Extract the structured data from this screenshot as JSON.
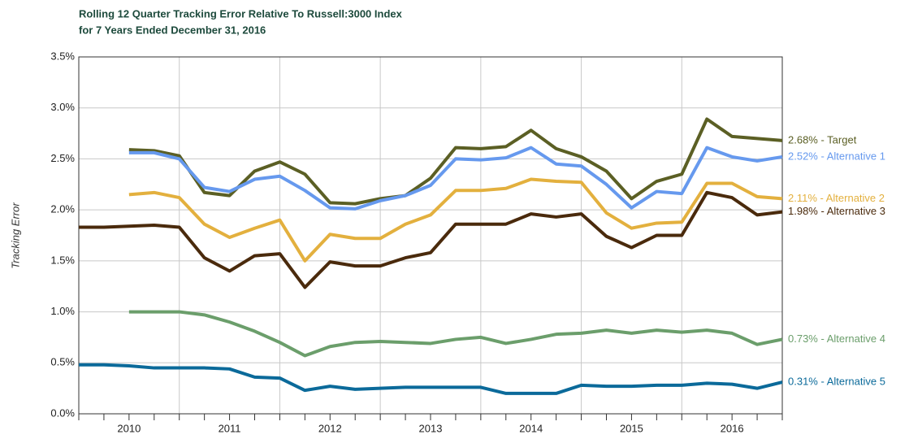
{
  "chart_data": {
    "type": "line",
    "title": "Rolling 12 Quarter Tracking Error Relative To Russell:3000 Index",
    "subtitle": "for 7 Years Ended December 31, 2016",
    "y_label": "Tracking Error",
    "x": [
      2010,
      2010.25,
      2010.5,
      2010.75,
      2011,
      2011.25,
      2011.5,
      2011.75,
      2012,
      2012.25,
      2012.5,
      2012.75,
      2013,
      2013.25,
      2013.5,
      2013.75,
      2014,
      2014.25,
      2014.5,
      2014.75,
      2015,
      2015.25,
      2015.5,
      2015.75,
      2016,
      2016.25,
      2016.5,
      2016.75,
      2017
    ],
    "xlim": [
      2010,
      2017
    ],
    "xticks": [
      {
        "value": 2010.5,
        "label": "2010"
      },
      {
        "value": 2011.5,
        "label": "2011"
      },
      {
        "value": 2012.5,
        "label": "2012"
      },
      {
        "value": 2013.5,
        "label": "2013"
      },
      {
        "value": 2014.5,
        "label": "2014"
      },
      {
        "value": 2015.5,
        "label": "2015"
      },
      {
        "value": 2016.5,
        "label": "2016"
      }
    ],
    "ylim": [
      0,
      3.5
    ],
    "yticks": [
      {
        "value": 0,
        "label": "0.0%"
      },
      {
        "value": 0.5,
        "label": "0.5%"
      },
      {
        "value": 1,
        "label": "1.0%"
      },
      {
        "value": 1.5,
        "label": "1.5%"
      },
      {
        "value": 2,
        "label": "2.0%"
      },
      {
        "value": 2.5,
        "label": "2.5%"
      },
      {
        "value": 3,
        "label": "3.0%"
      },
      {
        "value": 3.5,
        "label": "3.5%"
      }
    ],
    "grid": true,
    "series": [
      {
        "name": "2.68% - Target",
        "color": "#5b5f24",
        "values": [
          null,
          null,
          2.59,
          2.58,
          2.53,
          2.17,
          2.14,
          2.38,
          2.47,
          2.35,
          2.07,
          2.06,
          2.11,
          2.14,
          2.31,
          2.61,
          2.6,
          2.62,
          2.78,
          2.6,
          2.52,
          2.38,
          2.11,
          2.28,
          2.35,
          2.89,
          2.72,
          2.7,
          2.68
        ]
      },
      {
        "name": "2.52% - Alternative 1",
        "color": "#6699ee",
        "values": [
          null,
          null,
          2.56,
          2.56,
          2.5,
          2.22,
          2.18,
          2.3,
          2.33,
          2.19,
          2.02,
          2.01,
          2.09,
          2.14,
          2.24,
          2.5,
          2.49,
          2.51,
          2.61,
          2.45,
          2.43,
          2.25,
          2.02,
          2.18,
          2.16,
          2.61,
          2.52,
          2.48,
          2.52
        ]
      },
      {
        "name": "2.11% - Alternative 2",
        "color": "#e3b03e",
        "values": [
          null,
          null,
          2.15,
          2.17,
          2.12,
          1.86,
          1.73,
          1.82,
          1.9,
          1.5,
          1.76,
          1.72,
          1.72,
          1.86,
          1.95,
          2.19,
          2.19,
          2.21,
          2.3,
          2.28,
          2.27,
          1.97,
          1.82,
          1.87,
          1.88,
          2.26,
          2.26,
          2.13,
          2.11
        ]
      },
      {
        "name": "1.98% - Alternative 3",
        "color": "#4a2a0c",
        "values": [
          1.83,
          1.83,
          1.84,
          1.85,
          1.83,
          1.53,
          1.4,
          1.55,
          1.57,
          1.24,
          1.49,
          1.45,
          1.45,
          1.53,
          1.58,
          1.86,
          1.86,
          1.86,
          1.96,
          1.93,
          1.96,
          1.74,
          1.63,
          1.75,
          1.75,
          2.17,
          2.12,
          1.95,
          1.98
        ]
      },
      {
        "name": "0.73% - Alternative 4",
        "color": "#6b9e6b",
        "values": [
          null,
          null,
          1.0,
          1.0,
          1.0,
          0.97,
          0.9,
          0.81,
          0.7,
          0.57,
          0.66,
          0.7,
          0.71,
          0.7,
          0.69,
          0.73,
          0.75,
          0.69,
          0.73,
          0.78,
          0.79,
          0.82,
          0.79,
          0.82,
          0.8,
          0.82,
          0.79,
          0.68,
          0.73
        ]
      },
      {
        "name": "0.31% - Alternative 5",
        "color": "#0b6a9a",
        "values": [
          0.48,
          0.48,
          0.47,
          0.45,
          0.45,
          0.45,
          0.44,
          0.36,
          0.35,
          0.23,
          0.27,
          0.24,
          0.25,
          0.26,
          0.26,
          0.26,
          0.26,
          0.2,
          0.2,
          0.2,
          0.28,
          0.27,
          0.27,
          0.28,
          0.28,
          0.3,
          0.29,
          0.25,
          0.31
        ]
      }
    ]
  }
}
